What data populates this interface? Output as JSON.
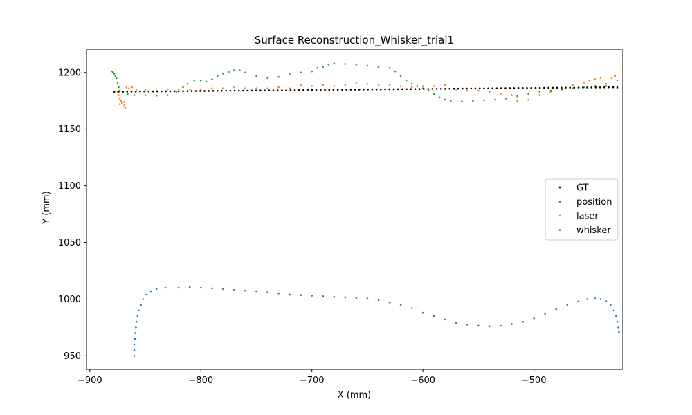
{
  "chart_data": {
    "type": "scatter",
    "title": "Surface Reconstruction_Whisker_trial1",
    "xlabel": "X (mm)",
    "ylabel": "Y (mm)",
    "xlim": [
      -903,
      -420
    ],
    "ylim": [
      938,
      1220
    ],
    "xticks": [
      -900,
      -800,
      -700,
      -600,
      -500
    ],
    "yticks": [
      950,
      1000,
      1050,
      1100,
      1150,
      1200
    ],
    "legend_position": "center-right",
    "grid": false,
    "series": [
      {
        "name": "GT",
        "color": "#000000",
        "x_range": [
          -878,
          -425
        ],
        "y_range": [
          1183,
          1187
        ],
        "count": 118,
        "points": []
      },
      {
        "name": "position",
        "color": "#1f77b4",
        "points": [
          [
            -860,
            950
          ],
          [
            -860,
            955
          ],
          [
            -860,
            960
          ],
          [
            -859.5,
            965
          ],
          [
            -859,
            970
          ],
          [
            -858.5,
            975
          ],
          [
            -858,
            980
          ],
          [
            -857,
            985
          ],
          [
            -856,
            990
          ],
          [
            -854,
            995
          ],
          [
            -852,
            1000
          ],
          [
            -849,
            1004
          ],
          [
            -845,
            1007
          ],
          [
            -840,
            1009
          ],
          [
            -832,
            1010
          ],
          [
            -820,
            1010
          ],
          [
            -810,
            1010.5
          ],
          [
            -800,
            1010
          ],
          [
            -790,
            1009.5
          ],
          [
            -780,
            1009
          ],
          [
            -770,
            1008
          ],
          [
            -760,
            1007.5
          ],
          [
            -750,
            1007
          ],
          [
            -740,
            1006
          ],
          [
            -730,
            1005
          ],
          [
            -720,
            1004
          ],
          [
            -710,
            1003.5
          ],
          [
            -700,
            1003
          ],
          [
            -690,
            1002.5
          ],
          [
            -680,
            1002
          ],
          [
            -670,
            1001.5
          ],
          [
            -660,
            1001
          ],
          [
            -650,
            1000.5
          ],
          [
            -640,
            999
          ],
          [
            -630,
            997
          ],
          [
            -620,
            995
          ],
          [
            -610,
            992
          ],
          [
            -600,
            988
          ],
          [
            -590,
            985
          ],
          [
            -580,
            982
          ],
          [
            -570,
            979
          ],
          [
            -560,
            977.5
          ],
          [
            -550,
            976.5
          ],
          [
            -540,
            976
          ],
          [
            -530,
            976.5
          ],
          [
            -520,
            978
          ],
          [
            -510,
            980
          ],
          [
            -500,
            983
          ],
          [
            -490,
            987
          ],
          [
            -480,
            991
          ],
          [
            -470,
            995
          ],
          [
            -460,
            998
          ],
          [
            -452,
            1000
          ],
          [
            -445,
            1000.5
          ],
          [
            -440,
            1000
          ],
          [
            -435,
            998
          ],
          [
            -431,
            995
          ],
          [
            -428,
            990
          ],
          [
            -426,
            985
          ],
          [
            -425,
            980
          ],
          [
            -424,
            975
          ],
          [
            -423.5,
            971
          ]
        ]
      },
      {
        "name": "laser",
        "color": "#ff7f0e",
        "points": [
          [
            -875,
            1183
          ],
          [
            -874,
            1180
          ],
          [
            -873,
            1177
          ],
          [
            -872,
            1175
          ],
          [
            -873,
            1172
          ],
          [
            -871,
            1173
          ],
          [
            -869,
            1171
          ],
          [
            -868,
            1169
          ],
          [
            -869,
            1174
          ],
          [
            -867,
            1187
          ],
          [
            -865,
            1186
          ],
          [
            -862,
            1187
          ],
          [
            -858,
            1185
          ],
          [
            -850,
            1185
          ],
          [
            -840,
            1184
          ],
          [
            -830,
            1185
          ],
          [
            -820,
            1185
          ],
          [
            -810,
            1185
          ],
          [
            -800,
            1185
          ],
          [
            -790,
            1186
          ],
          [
            -780,
            1186
          ],
          [
            -770,
            1187
          ],
          [
            -760,
            1186
          ],
          [
            -750,
            1186
          ],
          [
            -740,
            1186
          ],
          [
            -730,
            1187
          ],
          [
            -720,
            1186
          ],
          [
            -710,
            1189
          ],
          [
            -700,
            1188
          ],
          [
            -690,
            1189
          ],
          [
            -680,
            1188
          ],
          [
            -670,
            1189
          ],
          [
            -660,
            1191
          ],
          [
            -650,
            1190
          ],
          [
            -640,
            1189
          ],
          [
            -630,
            1189
          ],
          [
            -620,
            1188
          ],
          [
            -610,
            1187
          ],
          [
            -600,
            1188
          ],
          [
            -590,
            1188
          ],
          [
            -580,
            1189
          ],
          [
            -570,
            1185
          ],
          [
            -560,
            1184
          ],
          [
            -550,
            1184
          ],
          [
            -540,
            1183
          ],
          [
            -530,
            1181
          ],
          [
            -520,
            1180
          ],
          [
            -515,
            1175
          ],
          [
            -505,
            1176
          ],
          [
            -495,
            1180
          ],
          [
            -485,
            1183
          ],
          [
            -475,
            1186
          ],
          [
            -465,
            1189
          ],
          [
            -455,
            1191
          ],
          [
            -450,
            1193
          ],
          [
            -445,
            1194
          ],
          [
            -440,
            1195
          ],
          [
            -435,
            1190
          ],
          [
            -430,
            1195
          ],
          [
            -427,
            1197
          ],
          [
            -425,
            1193
          ]
        ]
      },
      {
        "name": "whisker",
        "color": "#2ca02c",
        "points": [
          [
            -880,
            1201
          ],
          [
            -879,
            1200
          ],
          [
            -878,
            1199
          ],
          [
            -877,
            1197
          ],
          [
            -876,
            1195
          ],
          [
            -875,
            1191
          ],
          [
            -874,
            1187
          ],
          [
            -873,
            1184
          ],
          [
            -870,
            1183
          ],
          [
            -866,
            1181
          ],
          [
            -860,
            1180
          ],
          [
            -850,
            1180
          ],
          [
            -840,
            1179.5
          ],
          [
            -830,
            1180
          ],
          [
            -822,
            1183
          ],
          [
            -816,
            1187
          ],
          [
            -812,
            1190
          ],
          [
            -806,
            1193
          ],
          [
            -800,
            1193
          ],
          [
            -795,
            1192
          ],
          [
            -790,
            1194
          ],
          [
            -785,
            1197
          ],
          [
            -780,
            1199
          ],
          [
            -775,
            1200.5
          ],
          [
            -770,
            1202
          ],
          [
            -765,
            1202
          ],
          [
            -760,
            1200
          ],
          [
            -750,
            1197
          ],
          [
            -740,
            1195
          ],
          [
            -730,
            1196
          ],
          [
            -720,
            1199
          ],
          [
            -710,
            1200
          ],
          [
            -700,
            1201
          ],
          [
            -695,
            1204
          ],
          [
            -690,
            1205
          ],
          [
            -685,
            1207
          ],
          [
            -680,
            1208
          ],
          [
            -670,
            1207.5
          ],
          [
            -660,
            1207
          ],
          [
            -650,
            1206
          ],
          [
            -640,
            1205
          ],
          [
            -630,
            1204
          ],
          [
            -625,
            1201
          ],
          [
            -620,
            1197
          ],
          [
            -615,
            1193
          ],
          [
            -610,
            1190
          ],
          [
            -605,
            1188
          ],
          [
            -600,
            1186
          ],
          [
            -595,
            1184
          ],
          [
            -590,
            1181
          ],
          [
            -585,
            1178
          ],
          [
            -580,
            1176
          ],
          [
            -575,
            1175
          ],
          [
            -565,
            1174.5
          ],
          [
            -555,
            1175
          ],
          [
            -545,
            1175.5
          ],
          [
            -535,
            1176
          ],
          [
            -525,
            1177
          ],
          [
            -515,
            1179
          ],
          [
            -505,
            1181
          ],
          [
            -495,
            1183
          ],
          [
            -485,
            1184
          ],
          [
            -475,
            1185
          ],
          [
            -465,
            1186
          ],
          [
            -455,
            1187
          ],
          [
            -445,
            1188
          ],
          [
            -435,
            1188
          ],
          [
            -428,
            1187
          ],
          [
            -425,
            1186
          ]
        ]
      }
    ]
  }
}
